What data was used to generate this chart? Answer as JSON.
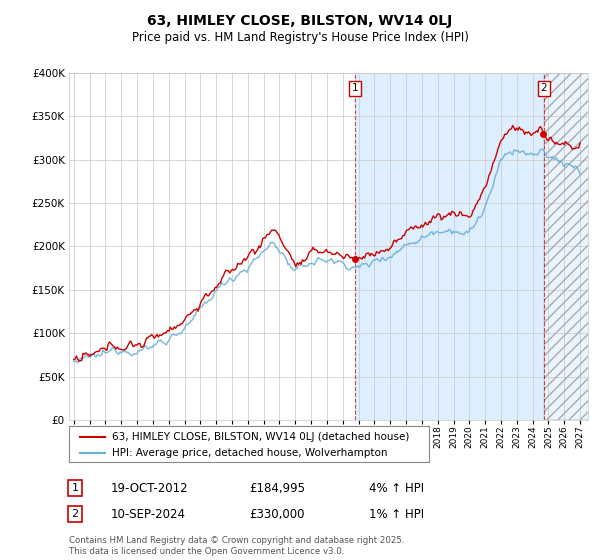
{
  "title": "63, HIMLEY CLOSE, BILSTON, WV14 0LJ",
  "subtitle": "Price paid vs. HM Land Registry's House Price Index (HPI)",
  "legend_line1": "63, HIMLEY CLOSE, BILSTON, WV14 0LJ (detached house)",
  "legend_line2": "HPI: Average price, detached house, Wolverhampton",
  "event1_label": "1",
  "event1_date": "19-OCT-2012",
  "event1_price": "£184,995",
  "event1_hpi": "4% ↑ HPI",
  "event2_label": "2",
  "event2_date": "10-SEP-2024",
  "event2_price": "£330,000",
  "event2_hpi": "1% ↑ HPI",
  "footer": "Contains HM Land Registry data © Crown copyright and database right 2025.\nThis data is licensed under the Open Government Licence v3.0.",
  "hpi_color": "#6baed6",
  "price_color": "#cc0000",
  "background_color": "#ffffff",
  "plot_bg_color": "#ffffff",
  "shaded_region_color": "#ddeeff",
  "grid_color": "#c8c8c8",
  "ylim": [
    0,
    400000
  ],
  "yticks": [
    0,
    50000,
    100000,
    150000,
    200000,
    250000,
    300000,
    350000,
    400000
  ],
  "start_year": 1995,
  "end_year": 2027,
  "event1_year": 2012.8,
  "event2_year": 2024.7,
  "event1_price_val": 184995,
  "event2_price_val": 330000
}
